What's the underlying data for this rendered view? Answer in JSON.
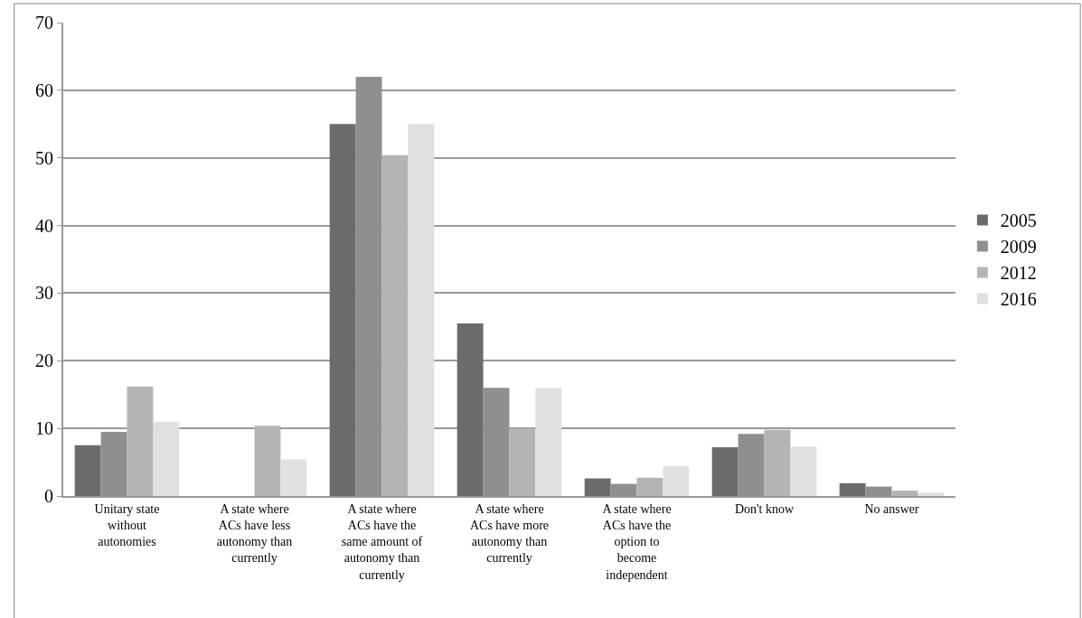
{
  "chart_data": {
    "type": "bar",
    "categories": [
      "Unitary state without autonomies",
      "A state where ACs have less autonomy than currently",
      "A state where ACs have the same amount of autonomy than currently",
      "A state where ACs have more autonomy than currently",
      "A state where ACs have the option to become independent",
      "Don't know",
      "No answer"
    ],
    "series": [
      {
        "name": "2005",
        "color": "#6b6b6b",
        "values": [
          7.5,
          null,
          55,
          25.5,
          2.6,
          7.2,
          1.9
        ]
      },
      {
        "name": "2009",
        "color": "#8f8f8f",
        "values": [
          9.5,
          null,
          62,
          16,
          1.8,
          9.2,
          1.4
        ]
      },
      {
        "name": "2012",
        "color": "#b4b4b4",
        "values": [
          16.2,
          10.4,
          50.4,
          10,
          2.7,
          9.8,
          0.8
        ]
      },
      {
        "name": "2016",
        "color": "#e0e0e0",
        "values": [
          11,
          5.4,
          55,
          16,
          4.4,
          7.3,
          0.5
        ]
      }
    ],
    "ylim": [
      0,
      70
    ],
    "yticks": [
      0,
      10,
      20,
      30,
      40,
      50,
      60,
      70
    ],
    "grid": "y",
    "legend": "right"
  }
}
